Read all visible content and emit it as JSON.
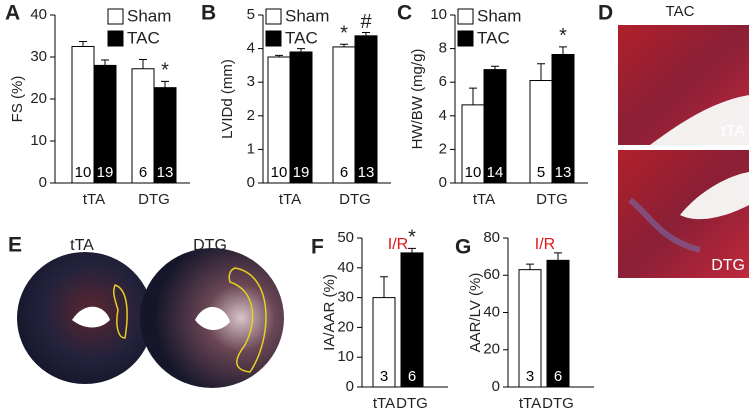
{
  "chart_data": [
    {
      "panel": "A",
      "type": "bar",
      "ylabel": "FS (%)",
      "categories": [
        "tTA",
        "DTG"
      ],
      "ylim": [
        0,
        40
      ],
      "yticks": [
        0,
        10,
        20,
        30,
        40
      ],
      "legend": "top-right",
      "series": [
        {
          "name": "Sham",
          "color": "#ffffff",
          "values": [
            32.5,
            27.2
          ],
          "errors": [
            1.2,
            2.2
          ],
          "n": [
            10,
            6
          ]
        },
        {
          "name": "TAC",
          "color": "#000000",
          "values": [
            28,
            22.7
          ],
          "errors": [
            1.3,
            1.5
          ],
          "n": [
            19,
            13
          ],
          "annotations": [
            null,
            "*"
          ]
        }
      ]
    },
    {
      "panel": "B",
      "type": "bar",
      "ylabel": "LVIDd (mm)",
      "categories": [
        "tTA",
        "DTG"
      ],
      "ylim": [
        0,
        5
      ],
      "yticks": [
        0,
        1,
        2,
        3,
        4,
        5
      ],
      "legend": "top-left",
      "series": [
        {
          "name": "Sham",
          "color": "#ffffff",
          "values": [
            3.75,
            4.05
          ],
          "errors": [
            0.05,
            0.08
          ],
          "n": [
            10,
            6
          ],
          "annotations": [
            null,
            "*"
          ]
        },
        {
          "name": "TAC",
          "color": "#000000",
          "values": [
            3.9,
            4.38
          ],
          "errors": [
            0.1,
            0.1
          ],
          "n": [
            19,
            13
          ],
          "annotations": [
            null,
            "#"
          ]
        }
      ]
    },
    {
      "panel": "C",
      "type": "bar",
      "ylabel": "HW/BW (mg/g)",
      "categories": [
        "tTA",
        "DTG"
      ],
      "ylim": [
        0,
        10
      ],
      "yticks": [
        0,
        2,
        4,
        6,
        8,
        10
      ],
      "legend": "top-left",
      "series": [
        {
          "name": "Sham",
          "color": "#ffffff",
          "values": [
            4.65,
            6.1
          ],
          "errors": [
            1.0,
            1.0
          ],
          "n": [
            10,
            5
          ]
        },
        {
          "name": "TAC",
          "color": "#000000",
          "values": [
            6.75,
            7.65
          ],
          "errors": [
            0.2,
            0.45
          ],
          "n": [
            14,
            13
          ],
          "annotations": [
            null,
            "*"
          ]
        }
      ]
    },
    {
      "panel": "F",
      "type": "bar",
      "title": "I/R",
      "title_color": "#e0161b",
      "ylabel": "IA/AAR (%)",
      "categories": [
        "tTA",
        "DTG"
      ],
      "ylim": [
        0,
        50
      ],
      "yticks": [
        0,
        10,
        20,
        30,
        40,
        50
      ],
      "series": [
        {
          "colors": [
            "#ffffff",
            "#000000"
          ],
          "values": [
            30,
            45
          ],
          "errors": [
            7,
            1.5
          ],
          "n": [
            3,
            6
          ],
          "annotations": [
            null,
            "*"
          ]
        }
      ]
    },
    {
      "panel": "G",
      "type": "bar",
      "title": "I/R",
      "title_color": "#e0161b",
      "ylabel": "AAR/LV (%)",
      "categories": [
        "tTA",
        "DTG"
      ],
      "ylim": [
        0,
        80
      ],
      "yticks": [
        0,
        20,
        40,
        60,
        80
      ],
      "series": [
        {
          "colors": [
            "#ffffff",
            "#000000"
          ],
          "values": [
            63,
            68
          ],
          "errors": [
            3,
            4
          ],
          "n": [
            3,
            6
          ]
        }
      ]
    }
  ],
  "images": [
    {
      "panel": "D",
      "title": "TAC",
      "labels": [
        "tTA",
        "DTG"
      ]
    },
    {
      "panel": "E",
      "labels": [
        "tTA",
        "DTG"
      ]
    }
  ]
}
